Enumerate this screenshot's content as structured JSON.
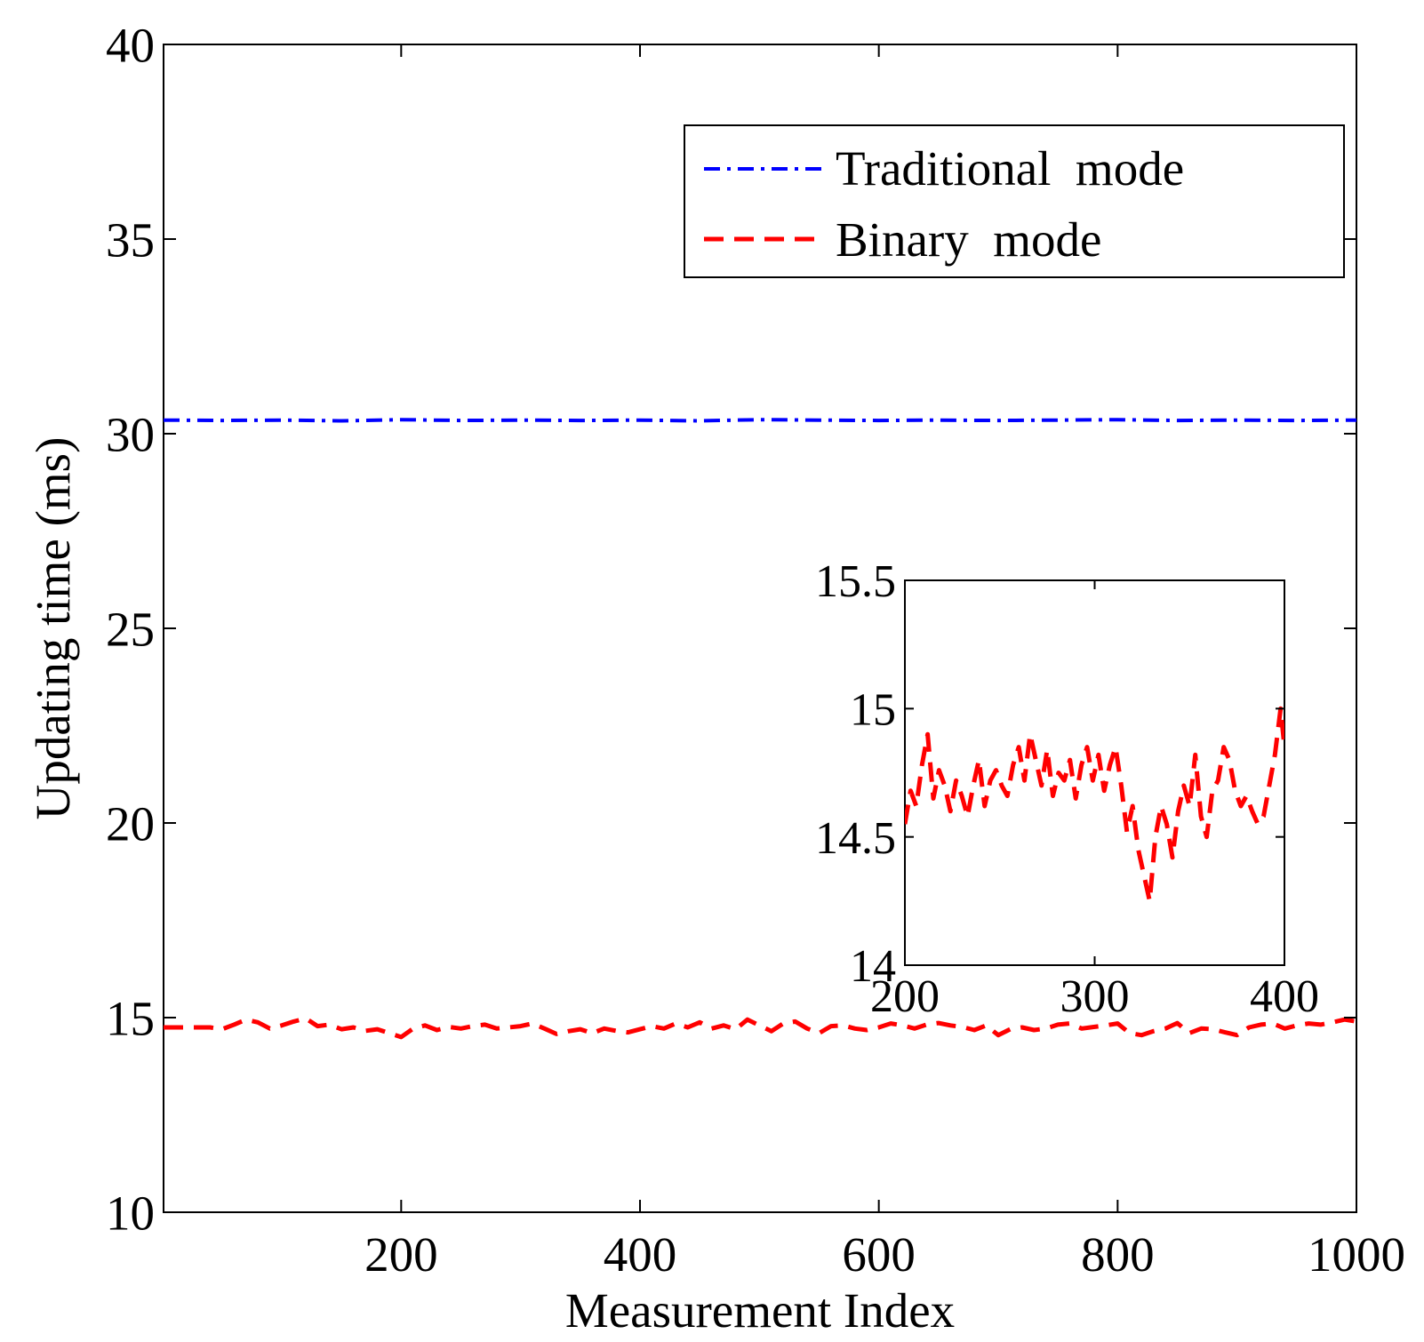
{
  "chart_data": [
    {
      "type": "line",
      "title": "",
      "xlabel": "Measurement Index",
      "ylabel": "Updating time (ms)",
      "xlim": [
        1,
        1000
      ],
      "ylim": [
        10,
        40
      ],
      "xticks": [
        200,
        400,
        600,
        800,
        1000
      ],
      "xtick_labels": [
        "200",
        "400",
        "600",
        "800",
        "1000"
      ],
      "yticks": [
        10,
        15,
        20,
        25,
        30,
        35,
        40
      ],
      "ytick_labels": [
        "10",
        "15",
        "20",
        "25",
        "30",
        "35",
        "40"
      ],
      "grid": false,
      "legend": {
        "placement": "top-right"
      },
      "series": [
        {
          "name": "Traditional  mode",
          "color": "#0000ff",
          "style": "dash-dot",
          "x": [
            1,
            50,
            100,
            150,
            200,
            250,
            300,
            350,
            400,
            450,
            500,
            550,
            600,
            650,
            700,
            750,
            800,
            850,
            900,
            950,
            1000
          ],
          "y": [
            30.35,
            30.34,
            30.35,
            30.33,
            30.36,
            30.34,
            30.35,
            30.34,
            30.35,
            30.33,
            30.36,
            30.35,
            30.34,
            30.35,
            30.34,
            30.35,
            30.36,
            30.34,
            30.35,
            30.34,
            30.35
          ]
        },
        {
          "name": "Binary  mode",
          "color": "#ff0000",
          "style": "dashed",
          "x": [
            1,
            40,
            50,
            60,
            70,
            80,
            90,
            100,
            110,
            120,
            130,
            140,
            150,
            160,
            170,
            180,
            190,
            200,
            210,
            220,
            230,
            240,
            250,
            260,
            270,
            280,
            290,
            300,
            310,
            320,
            330,
            340,
            350,
            360,
            370,
            380,
            390,
            400,
            410,
            420,
            430,
            440,
            450,
            460,
            470,
            480,
            490,
            500,
            510,
            520,
            530,
            540,
            550,
            560,
            570,
            580,
            590,
            600,
            610,
            620,
            630,
            640,
            650,
            660,
            670,
            680,
            690,
            700,
            710,
            720,
            730,
            740,
            750,
            760,
            770,
            780,
            790,
            800,
            810,
            820,
            830,
            840,
            850,
            860,
            870,
            880,
            890,
            900,
            910,
            920,
            930,
            940,
            950,
            960,
            970,
            980,
            990,
            1000
          ],
          "y": [
            14.75,
            14.75,
            14.7,
            14.82,
            14.95,
            14.88,
            14.72,
            14.8,
            14.9,
            14.98,
            14.78,
            14.82,
            14.7,
            14.75,
            14.66,
            14.7,
            14.6,
            14.5,
            14.72,
            14.8,
            14.68,
            14.76,
            14.72,
            14.78,
            14.82,
            14.72,
            14.75,
            14.78,
            14.85,
            14.72,
            14.58,
            14.65,
            14.7,
            14.6,
            14.72,
            14.66,
            14.62,
            14.7,
            14.78,
            14.72,
            14.85,
            14.75,
            14.88,
            14.72,
            14.8,
            14.7,
            14.95,
            14.8,
            14.65,
            14.85,
            14.9,
            14.72,
            14.6,
            14.78,
            14.8,
            14.72,
            14.68,
            14.75,
            14.85,
            14.8,
            14.72,
            14.82,
            14.86,
            14.8,
            14.76,
            14.68,
            14.8,
            14.55,
            14.7,
            14.75,
            14.68,
            14.72,
            14.82,
            14.85,
            14.72,
            14.76,
            14.8,
            14.85,
            14.6,
            14.55,
            14.65,
            14.72,
            14.86,
            14.6,
            14.72,
            14.7,
            14.62,
            14.55,
            14.75,
            14.82,
            14.85,
            14.72,
            14.8,
            14.85,
            14.82,
            14.88,
            14.95,
            14.9
          ]
        }
      ]
    },
    {
      "type": "line",
      "title": "",
      "xlabel": "",
      "ylabel": "",
      "xlim": [
        200,
        400
      ],
      "ylim": [
        14,
        15.5
      ],
      "xticks": [
        200,
        300,
        400
      ],
      "xtick_labels": [
        "200",
        "300",
        "400"
      ],
      "yticks": [
        14,
        14.5,
        15,
        15.5
      ],
      "ytick_labels": [
        "14",
        "14.5",
        "15",
        "15.5"
      ],
      "grid": false,
      "series": [
        {
          "name": "Binary  mode",
          "color": "#ff0000",
          "style": "dashed",
          "x": [
            200,
            203,
            206,
            209,
            212,
            215,
            218,
            221,
            224,
            227,
            230,
            233,
            236,
            239,
            242,
            245,
            248,
            251,
            254,
            257,
            260,
            263,
            266,
            269,
            272,
            275,
            278,
            281,
            284,
            287,
            290,
            293,
            296,
            299,
            302,
            305,
            308,
            311,
            314,
            317,
            320,
            323,
            326,
            329,
            332,
            335,
            338,
            341,
            344,
            347,
            350,
            353,
            356,
            359,
            362,
            365,
            368,
            371,
            374,
            377,
            380,
            383,
            386,
            389,
            392,
            395,
            398,
            400
          ],
          "y": [
            14.55,
            14.68,
            14.62,
            14.78,
            14.9,
            14.65,
            14.76,
            14.7,
            14.6,
            14.72,
            14.66,
            14.58,
            14.7,
            14.8,
            14.62,
            14.72,
            14.76,
            14.7,
            14.66,
            14.78,
            14.85,
            14.72,
            14.9,
            14.8,
            14.7,
            14.84,
            14.66,
            14.75,
            14.72,
            14.8,
            14.65,
            14.78,
            14.85,
            14.72,
            14.82,
            14.68,
            14.78,
            14.85,
            14.7,
            14.52,
            14.62,
            14.45,
            14.35,
            14.25,
            14.5,
            14.62,
            14.55,
            14.42,
            14.6,
            14.7,
            14.62,
            14.82,
            14.58,
            14.5,
            14.68,
            14.72,
            14.85,
            14.8,
            14.68,
            14.62,
            14.66,
            14.6,
            14.55,
            14.58,
            14.7,
            14.82,
            15.0,
            14.85
          ]
        }
      ]
    }
  ]
}
